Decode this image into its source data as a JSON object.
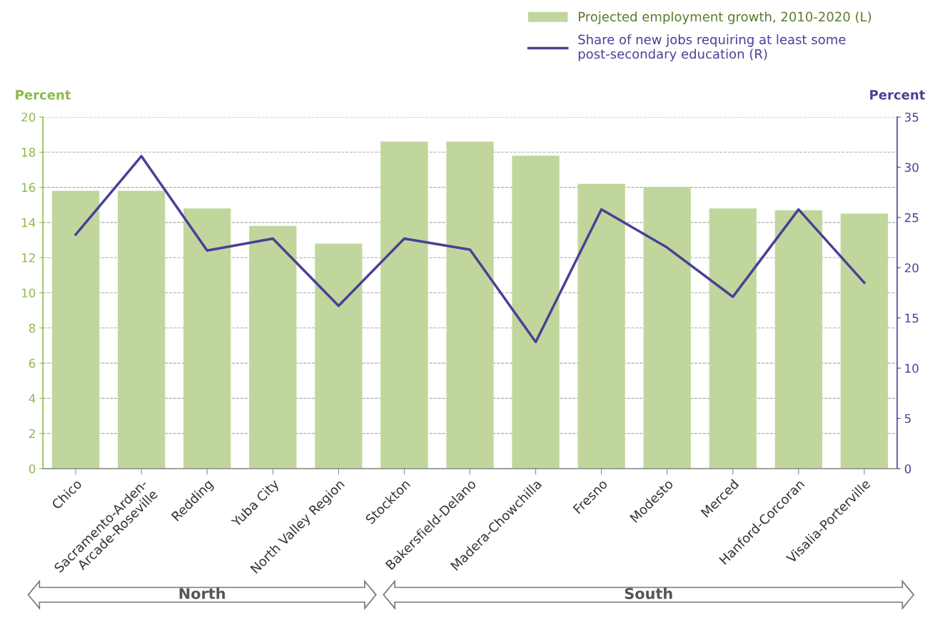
{
  "chart_data": {
    "type": "bar",
    "categories": [
      "Chico",
      "Sacramento-Arden-\nArcade-Roseville",
      "Redding",
      "Yuba City",
      "North Valley Region",
      "Stockton",
      "Bakersfield-Delano",
      "Madera-Chowchilla",
      "Fresno",
      "Modesto",
      "Merced",
      "Hanford-Corcoran",
      "Visalia-Porterville"
    ],
    "series": [
      {
        "name": "Projected employment growth, 2010-2020 (L)",
        "color": "#c1d69c",
        "values": [
          15.8,
          15.8,
          14.8,
          13.8,
          12.8,
          18.6,
          18.6,
          17.8,
          16.2,
          16.0,
          14.8,
          14.7,
          14.5
        ]
      },
      {
        "name": "Share of new jobs requiring at least some\npost-secondary education (R)",
        "type": "line",
        "axis": "y2",
        "color": "#4b3f96",
        "values": [
          23.3,
          31.1,
          21.7,
          22.9,
          16.2,
          22.9,
          21.8,
          12.6,
          25.8,
          22.0,
          17.1,
          25.8,
          18.5
        ]
      }
    ],
    "ylabel": "Percent",
    "y2label": "Percent",
    "ylim": [
      0,
      20
    ],
    "yticks": [
      0,
      2,
      4,
      6,
      8,
      10,
      12,
      14,
      16,
      18,
      20
    ],
    "y2lim": [
      0,
      35
    ],
    "y2ticks": [
      0,
      5,
      10,
      15,
      20,
      25,
      30,
      35
    ],
    "grid": "y",
    "legend": "top right",
    "marker": "none",
    "line_style": "solid",
    "annotations": [
      "North",
      "South"
    ]
  }
}
